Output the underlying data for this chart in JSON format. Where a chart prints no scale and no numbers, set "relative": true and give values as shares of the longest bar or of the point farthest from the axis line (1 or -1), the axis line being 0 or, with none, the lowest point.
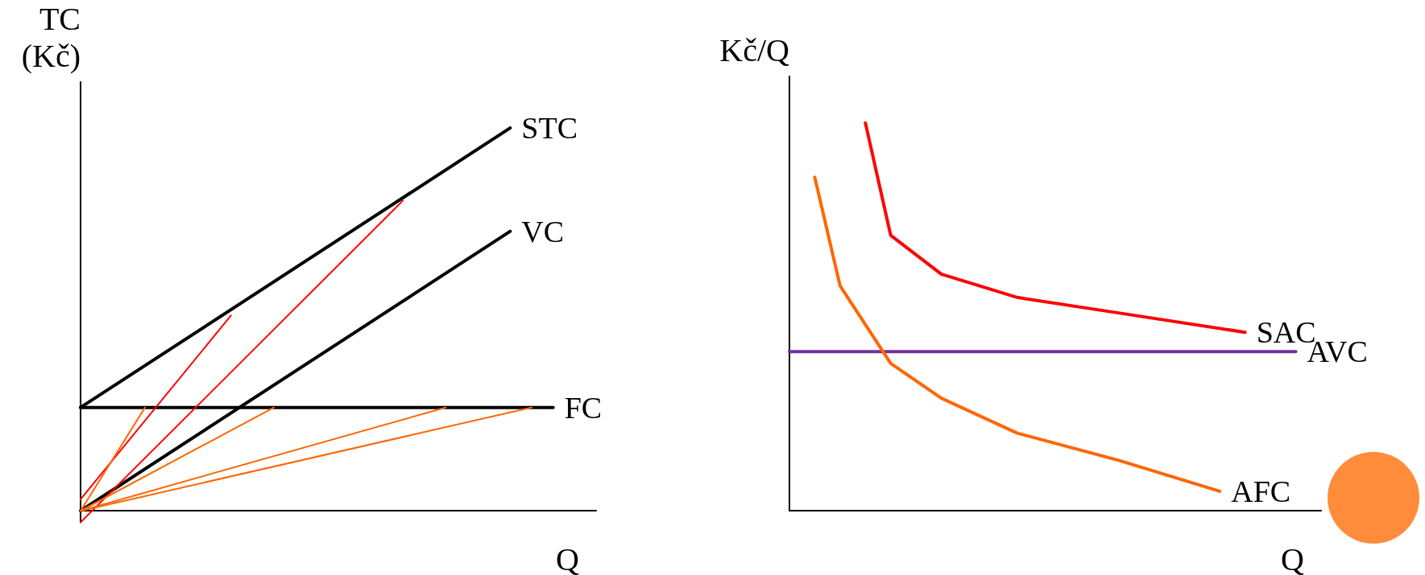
{
  "chart_data": [
    {
      "type": "line",
      "relative": true,
      "xlabel": "Q",
      "ylabel": "TC\n(Kč)",
      "marker": "none",
      "line_style": "solid",
      "categories": [
        null,
        null,
        null,
        null,
        null,
        null,
        null,
        null,
        null,
        null,
        null,
        null,
        null,
        null,
        null,
        null,
        null,
        null,
        null,
        null,
        null,
        null,
        null,
        null,
        null
      ],
      "series": [
        {
          "name": "STC",
          "color": "#000000",
          "values": [
            0.27,
            null,
            null,
            null,
            null,
            null,
            null,
            null,
            null,
            null,
            null,
            null,
            null,
            null,
            null,
            null,
            null,
            null,
            null,
            null,
            1,
            null,
            null,
            null,
            null
          ]
        },
        {
          "name": "VC",
          "color": "#000000",
          "values": [
            0,
            null,
            null,
            null,
            null,
            null,
            null,
            null,
            null,
            null,
            null,
            null,
            null,
            null,
            null,
            null,
            null,
            null,
            null,
            null,
            0.73,
            null,
            null,
            null,
            null
          ]
        },
        {
          "name": "FC",
          "color": "#000000",
          "values": [
            0.27,
            null,
            null,
            null,
            null,
            null,
            null,
            null,
            null,
            null,
            null,
            null,
            null,
            null,
            null,
            null,
            null,
            null,
            null,
            null,
            null,
            null,
            0.27,
            null,
            null
          ]
        },
        {
          "color": "#ff0000",
          "values": [
            0.03,
            null,
            null,
            null,
            null,
            null,
            null,
            0.51,
            null,
            null,
            null,
            null,
            null,
            null,
            null,
            null,
            null,
            null,
            null,
            null,
            null,
            null,
            null,
            null,
            null
          ]
        },
        {
          "color": "#ff0000",
          "values": [
            -0.03,
            null,
            null,
            null,
            null,
            null,
            null,
            null,
            null,
            null,
            null,
            null,
            null,
            null,
            null,
            0.81,
            null,
            null,
            null,
            null,
            null,
            null,
            null,
            null,
            null
          ]
        },
        {
          "color": "#ff6600",
          "values": [
            0,
            null,
            null,
            0.27,
            null,
            null,
            null,
            null,
            null,
            null,
            null,
            null,
            null,
            null,
            null,
            null,
            null,
            null,
            null,
            null,
            null,
            null,
            null,
            null,
            null
          ]
        },
        {
          "color": "#ff6600",
          "values": [
            0,
            null,
            null,
            null,
            null,
            null,
            null,
            null,
            null,
            0.27,
            null,
            null,
            null,
            null,
            null,
            null,
            null,
            null,
            null,
            null,
            null,
            null,
            null,
            null,
            null
          ]
        },
        {
          "color": "#ff6600",
          "values": [
            0,
            null,
            null,
            null,
            null,
            null,
            null,
            null,
            null,
            null,
            null,
            null,
            null,
            null,
            null,
            null,
            null,
            0.27,
            null,
            null,
            null,
            null,
            null,
            null,
            null
          ]
        },
        {
          "color": "#ff6600",
          "values": [
            0,
            null,
            null,
            null,
            null,
            null,
            null,
            null,
            null,
            null,
            null,
            null,
            null,
            null,
            null,
            null,
            null,
            null,
            null,
            null,
            null,
            0.27,
            null,
            null,
            null
          ]
        }
      ]
    },
    {
      "type": "line",
      "relative": true,
      "xlabel": "Q",
      "ylabel": "Kč/Q",
      "marker": "none",
      "line_style": "solid",
      "categories": [
        null,
        null,
        null,
        null,
        null,
        null,
        null,
        null,
        null,
        null,
        null,
        null,
        null,
        null,
        null,
        null,
        null,
        null,
        null,
        null,
        null,
        null
      ],
      "series": [
        {
          "name": "SAC",
          "color": "#ff0000",
          "values": [
            null,
            null,
            null,
            1,
            0.71,
            null,
            0.61,
            null,
            null,
            0.55,
            null,
            null,
            null,
            0.51,
            null,
            null,
            null,
            null,
            0.46,
            null,
            null,
            null
          ]
        },
        {
          "name": "AVC",
          "color": "#7030a0",
          "values": [
            0.41,
            null,
            null,
            null,
            null,
            null,
            null,
            null,
            null,
            null,
            null,
            null,
            null,
            null,
            null,
            null,
            null,
            null,
            null,
            null,
            0.41,
            null
          ]
        },
        {
          "name": "AFC",
          "color": "#ff6600",
          "values": [
            null,
            0.86,
            0.58,
            null,
            0.38,
            null,
            0.29,
            null,
            null,
            0.2,
            null,
            null,
            null,
            0.13,
            null,
            null,
            null,
            0.05,
            null,
            null,
            null,
            null
          ]
        }
      ]
    }
  ]
}
